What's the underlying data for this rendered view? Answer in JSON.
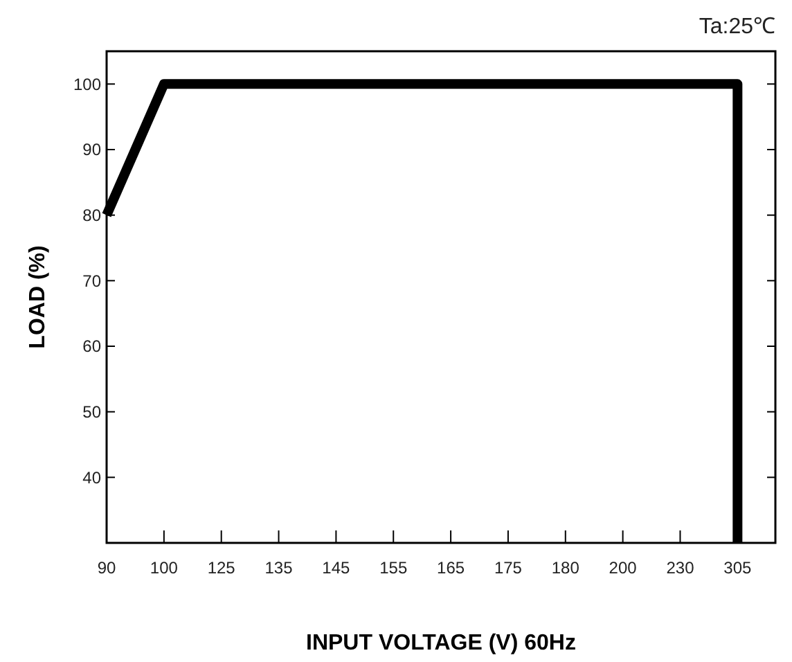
{
  "chart_data": {
    "type": "line",
    "xlabel": "INPUT VOLTAGE (V) 60Hz",
    "ylabel": "LOAD (%)",
    "annotations": [
      "Ta:25℃"
    ],
    "categories": [
      "90",
      "100",
      "125",
      "135",
      "145",
      "155",
      "165",
      "175",
      "180",
      "200",
      "230",
      "305"
    ],
    "series": [
      {
        "color": "#000000",
        "x": [
          "90",
          "100",
          "125",
          "135",
          "145",
          "155",
          "165",
          "175",
          "180",
          "200",
          "230",
          "305",
          "305"
        ],
        "values": [
          80,
          100,
          100,
          100,
          100,
          100,
          100,
          100,
          100,
          100,
          100,
          100,
          30
        ]
      }
    ],
    "ylim": [
      30,
      105
    ],
    "yticks": [
      40,
      50,
      60,
      70,
      80,
      90,
      100
    ],
    "grid": false,
    "marker": "none",
    "line_style": "solid"
  }
}
